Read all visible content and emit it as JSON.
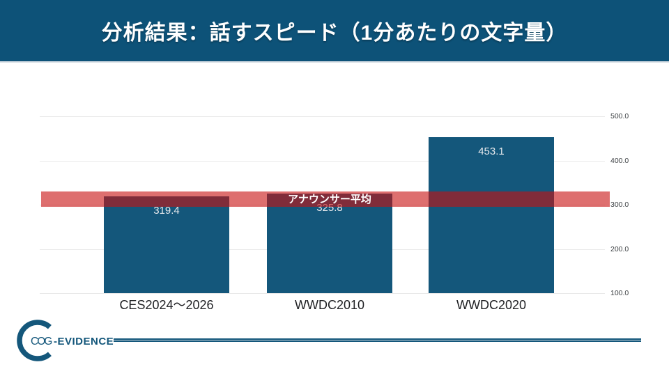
{
  "header": {
    "title": "分析結果：話すスピード（1分あたりの文字量）"
  },
  "chart_data": {
    "type": "bar",
    "title": "分析結果：話すスピード（1分あたりの文字量）",
    "categories": [
      "CES2024〜2026",
      "WWDC2010",
      "WWDC2020"
    ],
    "values": [
      319.4,
      325.8,
      453.1
    ],
    "value_labels": [
      "319.4",
      "325.8",
      "453.1"
    ],
    "xlabel": "",
    "ylabel": "",
    "ylim": [
      100,
      520
    ],
    "yticks": [
      100,
      200,
      300,
      400,
      500
    ],
    "ytick_labels": [
      "100.0",
      "200.0",
      "300.0",
      "400.0",
      "500.0"
    ],
    "grid": true,
    "legend_position": "none",
    "reference_band": {
      "label": "アナウンサー平均",
      "from": 295,
      "to": 330,
      "color": "rgba(200,15,15,0.6)"
    }
  },
  "footer": {
    "logo": {
      "icon": "cog-evidence-logo",
      "text_thin": "COG",
      "text_bold": "-EVIDENCE"
    }
  },
  "colors": {
    "header_bg": "#0d5278",
    "bar": "#14577b",
    "gridline": "#e9e9e9",
    "tick_text": "#3c4043",
    "category_text": "#202124",
    "value_text": "#e8eaed",
    "band": "rgba(200,15,15,0.6)",
    "logo": "#14577b"
  }
}
